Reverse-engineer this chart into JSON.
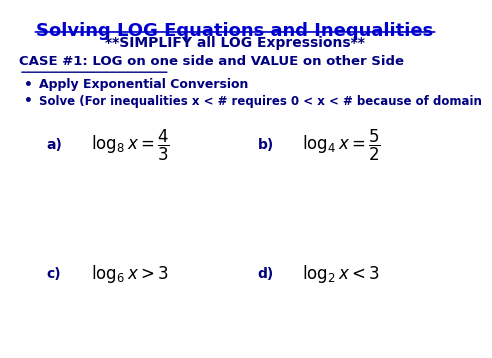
{
  "bg_color": "#ffffff",
  "title": "Solving LOG Equations and Inequalities",
  "title_color": "#0000cc",
  "title_fontsize": 13,
  "subtitle": "**SIMPLIFY all LOG Expressions**",
  "subtitle_color": "#000080",
  "subtitle_fontsize": 10,
  "case_line": "CASE #1: LOG on one side and VALUE on other Side",
  "case_color": "#000080",
  "case_fontsize": 9.5,
  "bullet1": "Apply Exponential Conversion",
  "bullet2": "Solve (For inequalities x < # requires 0 < x < # because of domain",
  "bullet_color": "#000080",
  "bullet_fontsize": 9,
  "label_a": "a)",
  "label_b": "b)",
  "label_c": "c)",
  "label_d": "d)",
  "eq_a": "$\\log_{8} x = \\dfrac{4}{3}$",
  "eq_b": "$\\log_{4} x = \\dfrac{5}{2}$",
  "eq_c": "$\\log_{6} x > 3$",
  "eq_d": "$\\log_{2} x < 3$",
  "eq_color": "#000000",
  "eq_fontsize": 12,
  "label_color": "#000080",
  "label_fontsize": 10
}
